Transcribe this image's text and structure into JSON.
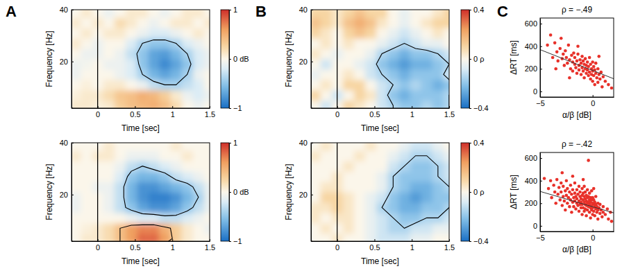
{
  "chart_data": [
    {
      "type": "heatmap",
      "panel": "A",
      "xlabel": "Time [sec]",
      "ylabel": "Frequency [Hz]",
      "x": [
        -0.3,
        -0.15,
        0,
        0.15,
        0.3,
        0.45,
        0.6,
        0.75,
        0.9,
        1.05,
        1.2,
        1.35,
        1.5
      ],
      "y": [
        3,
        7,
        11,
        15,
        19,
        23,
        27,
        31,
        35,
        39
      ],
      "z": [
        [
          0.1,
          0.1,
          0.05,
          0.1,
          0.3,
          0.4,
          0.45,
          0.5,
          0.4,
          0.2,
          0.0,
          -0.1,
          0.0
        ],
        [
          0.05,
          0.1,
          0.1,
          0.2,
          0.35,
          0.4,
          0.5,
          0.45,
          0.3,
          0.1,
          -0.1,
          -0.2,
          -0.1
        ],
        [
          0.0,
          0.05,
          0.0,
          0.1,
          0.1,
          0.0,
          -0.1,
          -0.3,
          -0.4,
          -0.4,
          -0.3,
          -0.2,
          0.0
        ],
        [
          -0.1,
          0.0,
          0.0,
          0.0,
          -0.1,
          -0.2,
          -0.4,
          -0.6,
          -0.7,
          -0.6,
          -0.4,
          -0.1,
          0.0
        ],
        [
          -0.1,
          -0.05,
          0.0,
          -0.1,
          -0.1,
          -0.2,
          -0.5,
          -0.7,
          -0.85,
          -0.7,
          -0.5,
          -0.2,
          -0.1
        ],
        [
          0.0,
          -0.1,
          -0.1,
          0.0,
          -0.1,
          -0.3,
          -0.5,
          -0.7,
          -0.75,
          -0.6,
          -0.4,
          -0.2,
          -0.1
        ],
        [
          0.1,
          0.0,
          -0.1,
          0.0,
          0.0,
          -0.2,
          -0.4,
          -0.5,
          -0.5,
          -0.4,
          -0.2,
          -0.1,
          0.0
        ],
        [
          0.0,
          0.1,
          0.0,
          0.1,
          0.1,
          0.0,
          -0.1,
          -0.2,
          -0.2,
          -0.1,
          0.0,
          0.1,
          0.0
        ],
        [
          0.1,
          0.0,
          0.1,
          0.0,
          0.2,
          0.1,
          0.0,
          -0.1,
          0.0,
          0.1,
          0.1,
          0.0,
          0.1
        ],
        [
          0.0,
          0.1,
          0.0,
          -0.1,
          0.0,
          0.1,
          0.1,
          0.0,
          -0.1,
          0.0,
          0.1,
          0.1,
          0.0
        ]
      ],
      "xlim": [
        -0.35,
        1.5
      ],
      "ylim": [
        2,
        40
      ],
      "xticks": [
        0,
        0.5,
        1,
        1.5
      ],
      "yticks": [
        20,
        40
      ],
      "colorbar_range": [
        -1,
        1
      ],
      "colorbar_ticks": [
        {
          "value": -1,
          "label": "−1"
        },
        {
          "value": 0,
          "label": "0 dB"
        },
        1
      ],
      "contour_levels": [
        -0.4
      ],
      "onset": 0
    },
    {
      "type": "heatmap",
      "xlabel": "Time [sec]",
      "ylabel": "Frequency [Hz]",
      "x": [
        -0.3,
        -0.15,
        0,
        0.15,
        0.3,
        0.45,
        0.6,
        0.75,
        0.9,
        1.05,
        1.2,
        1.35,
        1.5
      ],
      "y": [
        3,
        7,
        11,
        15,
        19,
        23,
        27,
        31,
        35,
        39
      ],
      "z": [
        [
          0.0,
          0.1,
          0.1,
          0.2,
          0.4,
          0.6,
          0.8,
          0.8,
          0.6,
          0.3,
          0.1,
          0.0,
          0.0
        ],
        [
          0.0,
          0.05,
          0.1,
          0.2,
          0.4,
          0.6,
          0.7,
          0.7,
          0.5,
          0.3,
          0.1,
          0.0,
          -0.1
        ],
        [
          0.0,
          0.0,
          0.0,
          0.0,
          0.0,
          -0.1,
          -0.2,
          -0.2,
          -0.3,
          -0.3,
          -0.2,
          -0.1,
          0.0
        ],
        [
          -0.1,
          0.0,
          0.0,
          -0.1,
          -0.3,
          -0.5,
          -0.7,
          -0.8,
          -0.8,
          -0.7,
          -0.5,
          -0.3,
          -0.1
        ],
        [
          -0.1,
          0.0,
          0.0,
          -0.1,
          -0.3,
          -0.6,
          -0.8,
          -0.9,
          -0.9,
          -0.8,
          -0.6,
          -0.4,
          -0.1
        ],
        [
          0.0,
          0.0,
          -0.1,
          -0.1,
          -0.3,
          -0.6,
          -0.8,
          -0.8,
          -0.7,
          -0.6,
          -0.5,
          -0.3,
          -0.1
        ],
        [
          0.0,
          0.0,
          0.0,
          0.0,
          -0.2,
          -0.5,
          -0.6,
          -0.6,
          -0.5,
          -0.3,
          -0.2,
          -0.1,
          0.0
        ],
        [
          0.0,
          0.0,
          0.0,
          0.0,
          -0.1,
          -0.3,
          -0.4,
          -0.3,
          -0.2,
          -0.1,
          0.0,
          0.0,
          0.0
        ],
        [
          0.1,
          0.0,
          0.1,
          0.1,
          0.0,
          -0.1,
          -0.1,
          -0.1,
          0.0,
          0.0,
          0.1,
          0.0,
          0.0
        ],
        [
          0.0,
          0.0,
          0.0,
          0.1,
          0.0,
          0.0,
          0.0,
          0.0,
          0.0,
          0.1,
          0.0,
          0.0,
          0.0
        ]
      ],
      "xlim": [
        -0.35,
        1.5
      ],
      "ylim": [
        2,
        40
      ],
      "xticks": [
        0,
        0.5,
        1,
        1.5
      ],
      "yticks": [
        20,
        40
      ],
      "colorbar_range": [
        -1,
        1
      ],
      "colorbar_ticks": [
        {
          "value": -1,
          "label": "−1"
        },
        {
          "value": 0,
          "label": "0 dB"
        },
        1
      ],
      "contour_levels": [
        -0.4,
        0.4
      ],
      "onset": 0
    },
    {
      "type": "heatmap",
      "panel": "B",
      "xlabel": "Time [sec]",
      "ylabel": "Frequency [Hz]",
      "x": [
        -0.3,
        -0.15,
        0,
        0.15,
        0.3,
        0.45,
        0.6,
        0.75,
        0.9,
        1.05,
        1.2,
        1.35,
        1.5
      ],
      "y": [
        3,
        7,
        11,
        15,
        19,
        23,
        27,
        31,
        35,
        39
      ],
      "z": [
        [
          0.0,
          -0.1,
          0.0,
          0.1,
          0.05,
          0.0,
          -0.1,
          -0.15,
          -0.2,
          -0.2,
          -0.15,
          -0.2,
          -0.15
        ],
        [
          0.1,
          0.0,
          -0.1,
          0.0,
          0.1,
          0.05,
          -0.1,
          -0.2,
          -0.25,
          -0.2,
          -0.2,
          -0.2,
          -0.15
        ],
        [
          0.0,
          0.05,
          0.0,
          0.1,
          0.1,
          0.0,
          -0.1,
          -0.15,
          -0.2,
          -0.15,
          -0.2,
          -0.25,
          -0.2
        ],
        [
          -0.05,
          0.0,
          0.0,
          0.05,
          0.0,
          -0.1,
          -0.15,
          -0.2,
          -0.25,
          -0.2,
          -0.2,
          -0.2,
          -0.1
        ],
        [
          0.0,
          -0.1,
          0.0,
          0.0,
          -0.05,
          -0.1,
          -0.2,
          -0.25,
          -0.3,
          -0.25,
          -0.25,
          -0.2,
          -0.15
        ],
        [
          0.05,
          0.0,
          -0.05,
          0.0,
          0.0,
          -0.05,
          -0.15,
          -0.2,
          -0.25,
          -0.2,
          -0.2,
          -0.15,
          -0.1
        ],
        [
          0.0,
          0.05,
          0.0,
          0.05,
          0.0,
          0.0,
          -0.05,
          -0.1,
          -0.15,
          -0.1,
          -0.05,
          -0.05,
          0.0
        ],
        [
          0.1,
          0.05,
          0.0,
          0.1,
          0.15,
          0.1,
          0.0,
          -0.05,
          -0.1,
          -0.05,
          0.0,
          0.05,
          0.0
        ],
        [
          0.15,
          0.1,
          0.05,
          0.15,
          0.2,
          0.15,
          0.05,
          0.0,
          -0.05,
          0.0,
          0.05,
          0.1,
          0.1
        ],
        [
          0.1,
          0.1,
          0.05,
          0.1,
          0.15,
          0.1,
          0.1,
          0.0,
          -0.05,
          0.0,
          0.0,
          0.05,
          0.1
        ]
      ],
      "xlim": [
        -0.35,
        1.5
      ],
      "ylim": [
        2,
        40
      ],
      "xticks": [
        0,
        0.5,
        1,
        1.5
      ],
      "yticks": [
        20,
        40
      ],
      "colorbar_range": [
        -0.4,
        0.4
      ],
      "colorbar_ticks": [
        {
          "value": -0.4,
          "label": "−0.4"
        },
        {
          "value": 0,
          "label": "0 ρ"
        },
        0.4
      ],
      "contour_levels": [
        -0.15
      ],
      "onset": 0
    },
    {
      "type": "heatmap",
      "xlabel": "Time [sec]",
      "ylabel": "Frequency [Hz]",
      "x": [
        -0.3,
        -0.15,
        0,
        0.15,
        0.3,
        0.45,
        0.6,
        0.75,
        0.9,
        1.05,
        1.2,
        1.35,
        1.5
      ],
      "y": [
        3,
        7,
        11,
        15,
        19,
        23,
        27,
        31,
        35,
        39
      ],
      "z": [
        [
          0.0,
          0.0,
          0.05,
          0.0,
          0.0,
          -0.05,
          -0.1,
          -0.1,
          -0.1,
          -0.05,
          -0.05,
          0.0,
          0.0
        ],
        [
          0.0,
          0.05,
          0.0,
          0.05,
          0.0,
          -0.05,
          -0.1,
          -0.15,
          -0.15,
          -0.1,
          -0.1,
          -0.05,
          -0.05
        ],
        [
          0.05,
          0.0,
          0.05,
          0.05,
          0.0,
          -0.05,
          -0.1,
          -0.15,
          -0.2,
          -0.2,
          -0.15,
          -0.15,
          -0.1
        ],
        [
          0.05,
          0.05,
          0.1,
          0.05,
          0.0,
          -0.05,
          -0.15,
          -0.2,
          -0.25,
          -0.25,
          -0.2,
          -0.2,
          -0.15
        ],
        [
          0.0,
          0.1,
          0.1,
          0.05,
          0.0,
          -0.05,
          -0.1,
          -0.2,
          -0.25,
          -0.3,
          -0.25,
          -0.2,
          -0.2
        ],
        [
          0.0,
          0.05,
          0.05,
          0.0,
          0.0,
          0.0,
          -0.05,
          -0.15,
          -0.2,
          -0.25,
          -0.25,
          -0.2,
          -0.15
        ],
        [
          0.0,
          0.0,
          0.05,
          0.0,
          0.0,
          0.0,
          -0.05,
          -0.15,
          -0.2,
          -0.2,
          -0.2,
          -0.15,
          -0.1
        ],
        [
          0.0,
          0.0,
          0.0,
          0.05,
          0.0,
          0.0,
          0.0,
          -0.1,
          -0.15,
          -0.2,
          -0.2,
          -0.15,
          -0.1
        ],
        [
          0.05,
          0.0,
          0.0,
          0.0,
          0.05,
          0.0,
          0.0,
          -0.05,
          -0.1,
          -0.15,
          -0.15,
          -0.1,
          -0.05
        ],
        [
          0.0,
          0.05,
          0.0,
          0.0,
          0.0,
          0.05,
          0.0,
          0.0,
          -0.05,
          -0.1,
          -0.1,
          -0.05,
          0.0
        ]
      ],
      "xlim": [
        -0.35,
        1.5
      ],
      "ylim": [
        2,
        40
      ],
      "xticks": [
        0,
        0.5,
        1,
        1.5
      ],
      "yticks": [
        20,
        40
      ],
      "colorbar_range": [
        -0.4,
        0.4
      ],
      "colorbar_ticks": [
        {
          "value": -0.4,
          "label": "−0.4"
        },
        {
          "value": 0,
          "label": "0 ρ"
        },
        0.4
      ],
      "contour_levels": [
        -0.15
      ],
      "onset": 0
    },
    {
      "type": "scatter",
      "panel": "C",
      "title": "ρ = −.49",
      "xlabel": "α/β [dB]",
      "ylabel": "ΔRT [ms]",
      "x": [
        -4.3,
        -4.0,
        -3.8,
        -3.6,
        -3.4,
        -3.3,
        -3.1,
        -3.0,
        -2.9,
        -2.8,
        -2.7,
        -2.6,
        -2.5,
        -2.4,
        -2.3,
        -2.2,
        -2.1,
        -2.0,
        -1.9,
        -1.9,
        -1.8,
        -1.7,
        -1.7,
        -1.6,
        -1.5,
        -1.5,
        -1.4,
        -1.3,
        -1.3,
        -1.2,
        -1.1,
        -1.1,
        -1.0,
        -1.0,
        -0.9,
        -0.9,
        -0.8,
        -0.8,
        -0.7,
        -0.7,
        -0.6,
        -0.6,
        -0.5,
        -0.5,
        -0.4,
        -0.4,
        -0.3,
        -0.3,
        -0.2,
        -0.2,
        -0.1,
        -0.1,
        0.0,
        0.0,
        0.0,
        0.1,
        0.1,
        0.2,
        0.2,
        0.3,
        0.3,
        0.4,
        0.5,
        0.5,
        0.6,
        0.7,
        0.8,
        0.9,
        1.0,
        1.2,
        1.5,
        1.8,
        -3.5,
        -2.2,
        -1.4,
        0.6
      ],
      "y": [
        410,
        500,
        300,
        430,
        350,
        270,
        380,
        470,
        290,
        330,
        230,
        360,
        300,
        250,
        410,
        280,
        200,
        320,
        260,
        180,
        340,
        240,
        300,
        210,
        270,
        160,
        330,
        230,
        190,
        280,
        250,
        150,
        310,
        210,
        270,
        180,
        240,
        120,
        290,
        200,
        230,
        160,
        260,
        190,
        140,
        220,
        300,
        170,
        240,
        110,
        200,
        150,
        260,
        180,
        90,
        220,
        140,
        190,
        60,
        160,
        250,
        120,
        200,
        80,
        150,
        110,
        170,
        40,
        130,
        90,
        60,
        30,
        200,
        120,
        400,
        310
      ],
      "fit": {
        "x": [
          -5,
          2
        ],
        "y": [
          370,
          112
        ]
      },
      "xlim": [
        -5,
        2
      ],
      "ylim": [
        -50,
        650
      ],
      "xticks": [
        {
          "value": -5,
          "label": "−5"
        },
        0
      ],
      "yticks": [
        0,
        200,
        400,
        600
      ],
      "color": "#e8312a",
      "marker": "circle"
    },
    {
      "type": "scatter",
      "title": "ρ = −.42",
      "xlabel": "α/β [dB]",
      "ylabel": "ΔRT [ms]",
      "x": [
        -4.6,
        -4.2,
        -4.0,
        -3.9,
        -3.7,
        -3.6,
        -3.5,
        -3.4,
        -3.3,
        -3.2,
        -3.1,
        -3.0,
        -3.0,
        -2.9,
        -2.8,
        -2.8,
        -2.7,
        -2.6,
        -2.6,
        -2.5,
        -2.5,
        -2.4,
        -2.4,
        -2.3,
        -2.2,
        -2.2,
        -2.1,
        -2.1,
        -2.0,
        -2.0,
        -1.9,
        -1.9,
        -1.8,
        -1.8,
        -1.7,
        -1.7,
        -1.7,
        -1.6,
        -1.6,
        -1.5,
        -1.5,
        -1.5,
        -1.4,
        -1.4,
        -1.3,
        -1.3,
        -1.3,
        -1.2,
        -1.2,
        -1.2,
        -1.1,
        -1.1,
        -1.1,
        -1.0,
        -1.0,
        -1.0,
        -1.0,
        -0.9,
        -0.9,
        -0.9,
        -0.8,
        -0.8,
        -0.8,
        -0.8,
        -0.7,
        -0.7,
        -0.7,
        -0.7,
        -0.6,
        -0.6,
        -0.6,
        -0.6,
        -0.5,
        -0.5,
        -0.5,
        -0.5,
        -0.4,
        -0.4,
        -0.4,
        -0.4,
        -0.3,
        -0.3,
        -0.3,
        -0.3,
        -0.2,
        -0.2,
        -0.2,
        -0.2,
        -0.1,
        -0.1,
        -0.1,
        -0.1,
        0.0,
        0.0,
        0.0,
        0.0,
        0.1,
        0.1,
        0.1,
        0.2,
        0.2,
        0.2,
        0.3,
        0.3,
        0.3,
        0.4,
        0.4,
        0.5,
        0.5,
        0.5,
        0.6,
        0.7,
        0.7,
        0.8,
        0.9,
        1.0,
        1.0,
        1.2,
        1.4,
        1.5,
        1.7,
        1.8,
        -1.9,
        -2.9,
        -0.9,
        0.1
      ],
      "y": [
        420,
        330,
        400,
        250,
        360,
        300,
        200,
        410,
        280,
        340,
        230,
        380,
        300,
        180,
        260,
        350,
        220,
        310,
        140,
        270,
        400,
        200,
        330,
        250,
        300,
        170,
        360,
        230,
        280,
        120,
        210,
        320,
        250,
        170,
        290,
        380,
        220,
        150,
        260,
        320,
        200,
        240,
        180,
        280,
        350,
        220,
        130,
        260,
        190,
        300,
        240,
        160,
        210,
        330,
        270,
        190,
        100,
        230,
        290,
        160,
        210,
        260,
        130,
        350,
        190,
        240,
        300,
        150,
        220,
        180,
        270,
        90,
        200,
        250,
        140,
        320,
        580,
        210,
        170,
        260,
        230,
        120,
        190,
        290,
        160,
        210,
        250,
        70,
        180,
        230,
        140,
        310,
        200,
        160,
        250,
        100,
        190,
        130,
        230,
        170,
        210,
        90,
        150,
        190,
        260,
        120,
        170,
        200,
        140,
        60,
        160,
        110,
        190,
        140,
        80,
        170,
        120,
        100,
        150,
        60,
        120,
        40,
        440,
        470,
        410,
        330
      ],
      "fit": {
        "x": [
          -5,
          2
        ],
        "y": [
          305,
          115
        ]
      },
      "xlim": [
        -5,
        2
      ],
      "ylim": [
        -50,
        650
      ],
      "xticks": [
        {
          "value": -5,
          "label": "−5"
        },
        0
      ],
      "yticks": [
        0,
        200,
        400,
        600
      ],
      "color": "#e8312a",
      "marker": "circle"
    }
  ]
}
